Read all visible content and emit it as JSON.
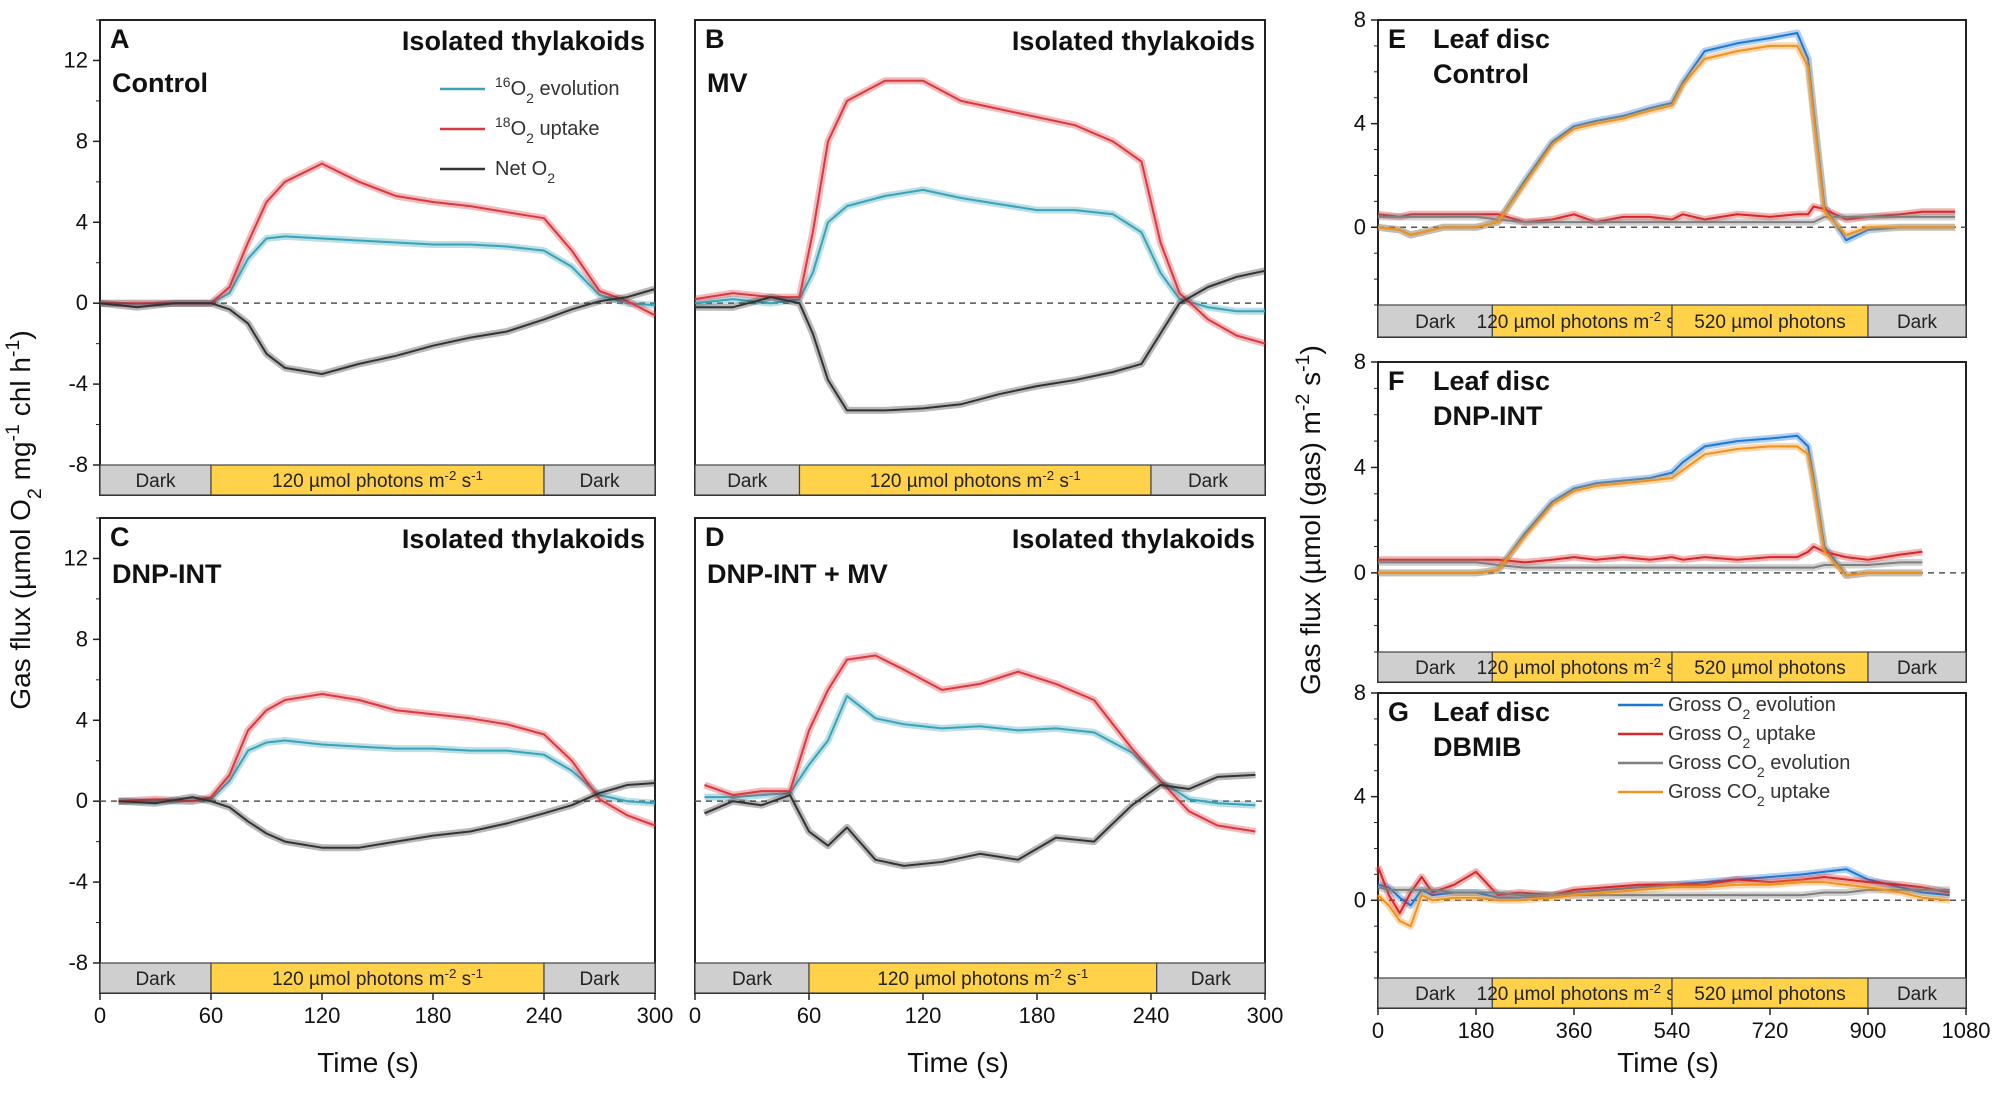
{
  "figure": {
    "ylabel_left": "Gas flux (µmol O2 mg-1 chl h-1)",
    "ylabel_right": "Gas flux (µmol (gas) m-2 s-1)",
    "xlabel": "Time (s)"
  },
  "colors": {
    "o16": "#3aa3b8",
    "o18": "#d9393f",
    "net": "#333333",
    "gross_o2_evo": "#1f77d4",
    "gross_o2_up": "#d62728",
    "gross_co2_evo": "#7f7f7f",
    "gross_co2_up": "#f0921e",
    "light_bar": "#ffd24a",
    "dark_bar": "#cfcfcf"
  },
  "legend_thylakoid": [
    {
      "key": "o16",
      "pre": "16",
      "main": "O",
      "sub": "2",
      "post": " evolution"
    },
    {
      "key": "o18",
      "pre": "18",
      "main": "O",
      "sub": "2",
      "post": " uptake"
    },
    {
      "key": "net",
      "pre": "",
      "main": "Net O",
      "sub": "2",
      "post": ""
    }
  ],
  "legend_leaf": [
    {
      "key": "gross_o2_evo",
      "main": "Gross O",
      "sub": "2",
      "post": " evolution"
    },
    {
      "key": "gross_o2_up",
      "main": "Gross O",
      "sub": "2",
      "post": " uptake"
    },
    {
      "key": "gross_co2_evo",
      "main": "Gross CO",
      "sub": "2",
      "post": " evolution"
    },
    {
      "key": "gross_co2_up",
      "main": "Gross CO",
      "sub": "2",
      "post": " uptake"
    }
  ],
  "bar_labels": {
    "dark": "Dark",
    "light120": "120 µmol photons m-2 s-1",
    "light520": "520 µmol photons"
  },
  "chart_data": [
    {
      "panel": "A",
      "type": "line",
      "title": "Isolated thylakoids",
      "condition": "Control",
      "xlim": [
        0,
        300
      ],
      "ylim": [
        -8,
        14
      ],
      "yticks": [
        12,
        8,
        4,
        0,
        -4,
        -8
      ],
      "xticks": [],
      "x": [
        0,
        20,
        40,
        60,
        70,
        80,
        90,
        100,
        120,
        140,
        160,
        180,
        200,
        220,
        240,
        255,
        270,
        285,
        300
      ],
      "series": [
        {
          "key": "o16",
          "values": [
            0,
            0,
            0,
            0,
            0.5,
            2.2,
            3.2,
            3.3,
            3.2,
            3.1,
            3.0,
            2.9,
            2.9,
            2.8,
            2.6,
            1.8,
            0.4,
            0,
            -0.1
          ]
        },
        {
          "key": "o18",
          "values": [
            0,
            0,
            0,
            0,
            0.8,
            3.0,
            5.0,
            6.0,
            6.9,
            6.0,
            5.3,
            5.0,
            4.8,
            4.5,
            4.2,
            2.6,
            0.6,
            0.1,
            -0.6
          ]
        },
        {
          "key": "net",
          "values": [
            0,
            -0.2,
            0,
            0,
            -0.3,
            -1.0,
            -2.5,
            -3.2,
            -3.5,
            -3.0,
            -2.6,
            -2.1,
            -1.7,
            -1.4,
            -0.8,
            -0.3,
            0.1,
            0.3,
            0.7
          ]
        }
      ],
      "light_periods": [
        {
          "x0": 0,
          "x1": 60,
          "kind": "dark"
        },
        {
          "x0": 60,
          "x1": 240,
          "kind": "light120"
        },
        {
          "x0": 240,
          "x1": 300,
          "kind": "dark"
        }
      ]
    },
    {
      "panel": "B",
      "type": "line",
      "title": "Isolated thylakoids",
      "condition": "MV",
      "xlim": [
        0,
        300
      ],
      "ylim": [
        -8,
        14
      ],
      "yticks": [],
      "xticks": [],
      "x": [
        0,
        20,
        40,
        55,
        62,
        70,
        80,
        100,
        120,
        140,
        160,
        180,
        200,
        220,
        235,
        245,
        255,
        270,
        285,
        300
      ],
      "series": [
        {
          "key": "o16",
          "values": [
            0,
            0.2,
            0,
            0.2,
            1.5,
            4.0,
            4.8,
            5.3,
            5.6,
            5.2,
            4.9,
            4.6,
            4.6,
            4.4,
            3.5,
            1.5,
            0.2,
            -0.2,
            -0.4,
            -0.4
          ]
        },
        {
          "key": "o18",
          "values": [
            0.2,
            0.5,
            0.3,
            0.3,
            3.5,
            8.0,
            10.0,
            11.0,
            11.0,
            10.0,
            9.6,
            9.2,
            8.8,
            8.0,
            7.0,
            3.0,
            0.5,
            -0.8,
            -1.6,
            -2.0
          ]
        },
        {
          "key": "net",
          "values": [
            -0.2,
            -0.2,
            0.3,
            0,
            -1.5,
            -3.8,
            -5.3,
            -5.3,
            -5.2,
            -5.0,
            -4.5,
            -4.1,
            -3.8,
            -3.4,
            -3.0,
            -1.5,
            0,
            0.8,
            1.3,
            1.6
          ]
        }
      ],
      "light_periods": [
        {
          "x0": 0,
          "x1": 55,
          "kind": "dark"
        },
        {
          "x0": 55,
          "x1": 240,
          "kind": "light120"
        },
        {
          "x0": 240,
          "x1": 300,
          "kind": "dark"
        }
      ]
    },
    {
      "panel": "C",
      "type": "line",
      "title": "Isolated thylakoids",
      "condition": "DNP-INT",
      "xlim": [
        0,
        300
      ],
      "ylim": [
        -8,
        14
      ],
      "yticks": [
        12,
        8,
        4,
        0,
        -4,
        -8
      ],
      "xticks": [
        0,
        60,
        120,
        180,
        240,
        300
      ],
      "x": [
        10,
        30,
        50,
        60,
        70,
        80,
        90,
        100,
        120,
        140,
        160,
        180,
        200,
        220,
        240,
        255,
        270,
        285,
        300
      ],
      "series": [
        {
          "key": "o16",
          "values": [
            0,
            0,
            0,
            0.1,
            1.0,
            2.5,
            2.9,
            3.0,
            2.8,
            2.7,
            2.6,
            2.6,
            2.5,
            2.5,
            2.3,
            1.5,
            0.3,
            0,
            -0.1
          ]
        },
        {
          "key": "o18",
          "values": [
            0,
            0.1,
            0,
            0.2,
            1.3,
            3.5,
            4.5,
            5.0,
            5.3,
            5.0,
            4.5,
            4.3,
            4.1,
            3.8,
            3.3,
            2.0,
            0.1,
            -0.7,
            -1.2
          ]
        },
        {
          "key": "net",
          "values": [
            0,
            -0.1,
            0.2,
            0,
            -0.3,
            -1.0,
            -1.6,
            -2.0,
            -2.3,
            -2.3,
            -2.0,
            -1.7,
            -1.5,
            -1.1,
            -0.6,
            -0.2,
            0.4,
            0.8,
            0.9
          ]
        }
      ],
      "light_periods": [
        {
          "x0": 0,
          "x1": 60,
          "kind": "dark"
        },
        {
          "x0": 60,
          "x1": 240,
          "kind": "light120"
        },
        {
          "x0": 240,
          "x1": 300,
          "kind": "dark"
        }
      ]
    },
    {
      "panel": "D",
      "type": "line",
      "title": "Isolated thylakoids",
      "condition": "DNP-INT + MV",
      "xlim": [
        0,
        300
      ],
      "ylim": [
        -8,
        14
      ],
      "yticks": [],
      "xticks": [
        0,
        60,
        120,
        180,
        240,
        300
      ],
      "x": [
        5,
        20,
        35,
        50,
        60,
        70,
        80,
        95,
        110,
        130,
        150,
        170,
        190,
        210,
        230,
        245,
        260,
        275,
        295
      ],
      "series": [
        {
          "key": "o16",
          "values": [
            0.2,
            0.2,
            0.3,
            0.4,
            1.8,
            3.0,
            5.2,
            4.1,
            3.8,
            3.6,
            3.7,
            3.5,
            3.6,
            3.4,
            2.4,
            1.0,
            0.1,
            -0.1,
            -0.2
          ]
        },
        {
          "key": "o18",
          "values": [
            0.8,
            0.3,
            0.5,
            0.5,
            3.5,
            5.5,
            7.0,
            7.2,
            6.5,
            5.5,
            5.8,
            6.4,
            5.8,
            5.0,
            2.6,
            1.0,
            -0.5,
            -1.2,
            -1.5
          ]
        },
        {
          "key": "net",
          "values": [
            -0.6,
            0,
            -0.2,
            0.3,
            -1.5,
            -2.2,
            -1.3,
            -2.9,
            -3.2,
            -3.0,
            -2.6,
            -2.9,
            -1.8,
            -2.0,
            -0.2,
            0.8,
            0.6,
            1.2,
            1.3
          ]
        }
      ],
      "light_periods": [
        {
          "x0": 0,
          "x1": 60,
          "kind": "dark"
        },
        {
          "x0": 60,
          "x1": 243,
          "kind": "light120"
        },
        {
          "x0": 243,
          "x1": 300,
          "kind": "dark"
        }
      ]
    },
    {
      "panel": "E",
      "type": "line",
      "title": "Leaf disc",
      "condition": "Control",
      "xlim": [
        0,
        1080
      ],
      "ylim": [
        -3,
        8
      ],
      "yticks": [
        8,
        4,
        0
      ],
      "xticks": [],
      "x": [
        0,
        40,
        60,
        120,
        180,
        220,
        270,
        320,
        360,
        400,
        450,
        500,
        540,
        560,
        600,
        660,
        720,
        770,
        790,
        800,
        820,
        860,
        900,
        960,
        1000,
        1060
      ],
      "series": [
        {
          "key": "gross_o2_evo",
          "values": [
            0,
            -0.1,
            -0.3,
            0,
            0,
            0.2,
            1.8,
            3.3,
            3.9,
            4.1,
            4.3,
            4.6,
            4.8,
            5.6,
            6.8,
            7.1,
            7.3,
            7.5,
            6.5,
            4.5,
            0.8,
            -0.5,
            -0.1,
            0,
            0,
            0
          ]
        },
        {
          "key": "gross_o2_up",
          "values": [
            0.5,
            0.4,
            0.5,
            0.5,
            0.5,
            0.5,
            0.2,
            0.3,
            0.5,
            0.2,
            0.4,
            0.4,
            0.3,
            0.5,
            0.3,
            0.5,
            0.4,
            0.5,
            0.5,
            0.8,
            0.7,
            0.3,
            0.4,
            0.5,
            0.6,
            0.6
          ]
        },
        {
          "key": "gross_co2_evo",
          "values": [
            0.4,
            0.4,
            0.4,
            0.4,
            0.4,
            0.3,
            0.2,
            0.2,
            0.2,
            0.2,
            0.2,
            0.2,
            0.2,
            0.2,
            0.2,
            0.2,
            0.2,
            0.2,
            0.2,
            0.2,
            0.4,
            0.4,
            0.4,
            0.4,
            0.4,
            0.4
          ]
        },
        {
          "key": "gross_co2_up",
          "values": [
            0,
            -0.1,
            -0.3,
            0,
            0,
            0.2,
            1.7,
            3.2,
            3.8,
            4.0,
            4.2,
            4.5,
            4.7,
            5.5,
            6.5,
            6.8,
            7.0,
            7.0,
            6.2,
            4.3,
            0.6,
            -0.3,
            0,
            0,
            0,
            0
          ]
        }
      ],
      "light_periods": [
        {
          "x0": 0,
          "x1": 210,
          "kind": "dark"
        },
        {
          "x0": 210,
          "x1": 540,
          "kind": "light120"
        },
        {
          "x0": 540,
          "x1": 900,
          "kind": "light520"
        },
        {
          "x0": 900,
          "x1": 1080,
          "kind": "dark"
        }
      ]
    },
    {
      "panel": "F",
      "type": "line",
      "title": "Leaf disc",
      "condition": "DNP-INT",
      "xlim": [
        0,
        1080
      ],
      "ylim": [
        -3,
        8
      ],
      "yticks": [
        8,
        4,
        0
      ],
      "xticks": [],
      "x": [
        0,
        60,
        120,
        180,
        220,
        270,
        320,
        360,
        400,
        450,
        500,
        540,
        560,
        600,
        660,
        720,
        770,
        790,
        800,
        820,
        860,
        900,
        960,
        1000
      ],
      "series": [
        {
          "key": "gross_o2_evo",
          "values": [
            0,
            0,
            0,
            0,
            0.1,
            1.5,
            2.7,
            3.2,
            3.4,
            3.5,
            3.6,
            3.8,
            4.2,
            4.8,
            5.0,
            5.1,
            5.2,
            4.8,
            3.6,
            1.0,
            -0.1,
            0,
            0,
            0
          ]
        },
        {
          "key": "gross_o2_up",
          "values": [
            0.5,
            0.5,
            0.5,
            0.5,
            0.5,
            0.4,
            0.5,
            0.6,
            0.5,
            0.6,
            0.5,
            0.6,
            0.5,
            0.6,
            0.5,
            0.6,
            0.6,
            0.8,
            1.0,
            0.8,
            0.6,
            0.5,
            0.7,
            0.8
          ]
        },
        {
          "key": "gross_co2_evo",
          "values": [
            0.4,
            0.4,
            0.4,
            0.4,
            0.3,
            0.2,
            0.2,
            0.2,
            0.2,
            0.2,
            0.2,
            0.2,
            0.2,
            0.2,
            0.2,
            0.2,
            0.2,
            0.2,
            0.2,
            0.3,
            0.3,
            0.3,
            0.4,
            0.4
          ]
        },
        {
          "key": "gross_co2_up",
          "values": [
            0,
            0,
            0,
            0,
            0.1,
            1.4,
            2.6,
            3.1,
            3.3,
            3.4,
            3.5,
            3.6,
            3.9,
            4.5,
            4.7,
            4.8,
            4.8,
            4.5,
            3.4,
            0.8,
            -0.1,
            0,
            0,
            0
          ]
        }
      ],
      "light_periods": [
        {
          "x0": 0,
          "x1": 210,
          "kind": "dark"
        },
        {
          "x0": 210,
          "x1": 540,
          "kind": "light120"
        },
        {
          "x0": 540,
          "x1": 900,
          "kind": "light520"
        },
        {
          "x0": 900,
          "x1": 1080,
          "kind": "dark"
        }
      ]
    },
    {
      "panel": "G",
      "type": "line",
      "title": "Leaf disc",
      "condition": "DBMIB",
      "xlim": [
        0,
        1080
      ],
      "ylim": [
        -3,
        8
      ],
      "yticks": [
        8,
        4,
        0
      ],
      "xticks": [
        0,
        180,
        360,
        540,
        720,
        900,
        1080
      ],
      "x": [
        0,
        20,
        40,
        60,
        80,
        100,
        140,
        180,
        220,
        260,
        320,
        360,
        420,
        480,
        540,
        600,
        660,
        720,
        780,
        820,
        860,
        900,
        960,
        1000,
        1050
      ],
      "series": [
        {
          "key": "gross_o2_evo",
          "values": [
            0.6,
            0.5,
            0.1,
            -0.2,
            0.4,
            0.2,
            0.3,
            0.3,
            0.1,
            0.1,
            0.2,
            0.3,
            0.4,
            0.5,
            0.6,
            0.7,
            0.8,
            0.9,
            1.0,
            1.1,
            1.2,
            0.8,
            0.5,
            0.3,
            0.2
          ]
        },
        {
          "key": "gross_o2_up",
          "values": [
            1.3,
            0.2,
            -0.5,
            0.3,
            0.9,
            0.3,
            0.6,
            1.1,
            0.2,
            0.3,
            0.2,
            0.4,
            0.5,
            0.6,
            0.6,
            0.6,
            0.8,
            0.7,
            0.8,
            0.9,
            0.8,
            0.7,
            0.6,
            0.5,
            0.3
          ]
        },
        {
          "key": "gross_co2_evo",
          "values": [
            0.5,
            0.4,
            0.4,
            0.4,
            0.4,
            0.4,
            0.3,
            0.3,
            0.3,
            0.2,
            0.2,
            0.2,
            0.2,
            0.2,
            0.2,
            0.2,
            0.2,
            0.2,
            0.2,
            0.3,
            0.3,
            0.4,
            0.4,
            0.4,
            0.4
          ]
        },
        {
          "key": "gross_co2_up",
          "values": [
            0.2,
            -0.2,
            -0.8,
            -1.0,
            0.2,
            0,
            0.1,
            0.1,
            0,
            0,
            0.1,
            0.2,
            0.3,
            0.4,
            0.5,
            0.5,
            0.6,
            0.6,
            0.7,
            0.7,
            0.6,
            0.5,
            0.3,
            0.1,
            0
          ]
        }
      ],
      "light_periods": [
        {
          "x0": 0,
          "x1": 210,
          "kind": "dark"
        },
        {
          "x0": 210,
          "x1": 540,
          "kind": "light120"
        },
        {
          "x0": 540,
          "x1": 900,
          "kind": "light520"
        },
        {
          "x0": 900,
          "x1": 1080,
          "kind": "dark"
        }
      ]
    }
  ]
}
